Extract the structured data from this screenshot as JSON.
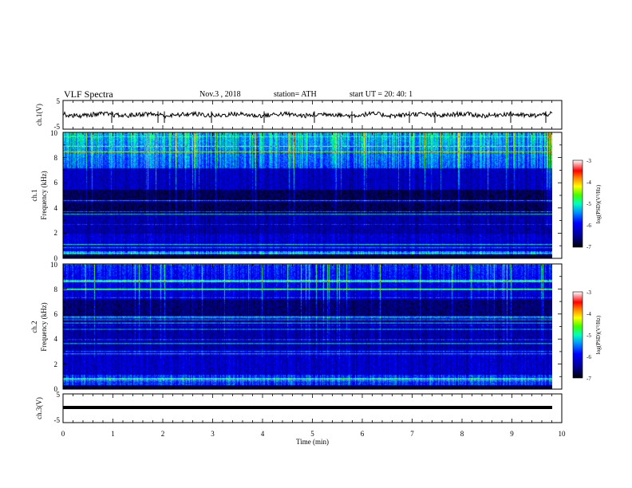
{
  "header": {
    "title": "VLF  Spectra",
    "date": "Nov.3  , 2018",
    "station": "station= ATH",
    "start_ut": "start  UT  =   20: 40: 1"
  },
  "chart_data": [
    {
      "type": "line",
      "ylabel": "ch.1(V)",
      "ylim": [
        -5,
        5
      ],
      "yticks": [
        "5",
        "-5"
      ],
      "xlim": [
        0,
        10
      ],
      "description_values": {
        "baseline_v": 0,
        "noise_amplitude_v": 0.8
      }
    },
    {
      "type": "heatmap",
      "ylabel": "ch.1\nFrequency (kHz)",
      "ylabel_parts": [
        "ch.1",
        "Frequency (kHz)"
      ],
      "ylim": [
        0,
        10
      ],
      "yticks": [
        "0",
        "2",
        "4",
        "6",
        "8",
        "10"
      ],
      "xlim": [
        0,
        10
      ],
      "colorbar": {
        "label": "log(PSD)(V²/Hz)",
        "range": [
          -7,
          -3
        ],
        "ticks": [
          "-3",
          "-4",
          "-5",
          "-6",
          "-7"
        ]
      }
    },
    {
      "type": "heatmap",
      "ylabel": "ch.2\nFrequency (kHz)",
      "ylabel_parts": [
        "ch.2",
        "Frequency (kHz)"
      ],
      "ylim": [
        0,
        10
      ],
      "yticks": [
        "0",
        "2",
        "4",
        "6",
        "8",
        "10"
      ],
      "xlim": [
        0,
        10
      ],
      "colorbar": {
        "label": "log(PSD)(V²/Hz)",
        "range": [
          -7,
          -3
        ],
        "ticks": [
          "-3",
          "-4",
          "-5",
          "-6",
          "-7"
        ]
      }
    },
    {
      "type": "line",
      "ylabel": "ch.3(V)",
      "ylim": [
        -5,
        5
      ],
      "yticks": [
        "5",
        "-5"
      ],
      "xlim": [
        0,
        10
      ],
      "xlabel": "Time  (min)",
      "xticks": [
        "0",
        "1",
        "2",
        "3",
        "4",
        "5",
        "6",
        "7",
        "8",
        "9",
        "10"
      ],
      "description_values": {
        "baseline_v": 0
      }
    }
  ],
  "colors": {
    "colormap": [
      "#000000",
      "#000080",
      "#0000ff",
      "#0080ff",
      "#00e0ff",
      "#00ff80",
      "#80ff00",
      "#ffff00",
      "#ff8000",
      "#ff0000",
      "#ffffff"
    ]
  }
}
